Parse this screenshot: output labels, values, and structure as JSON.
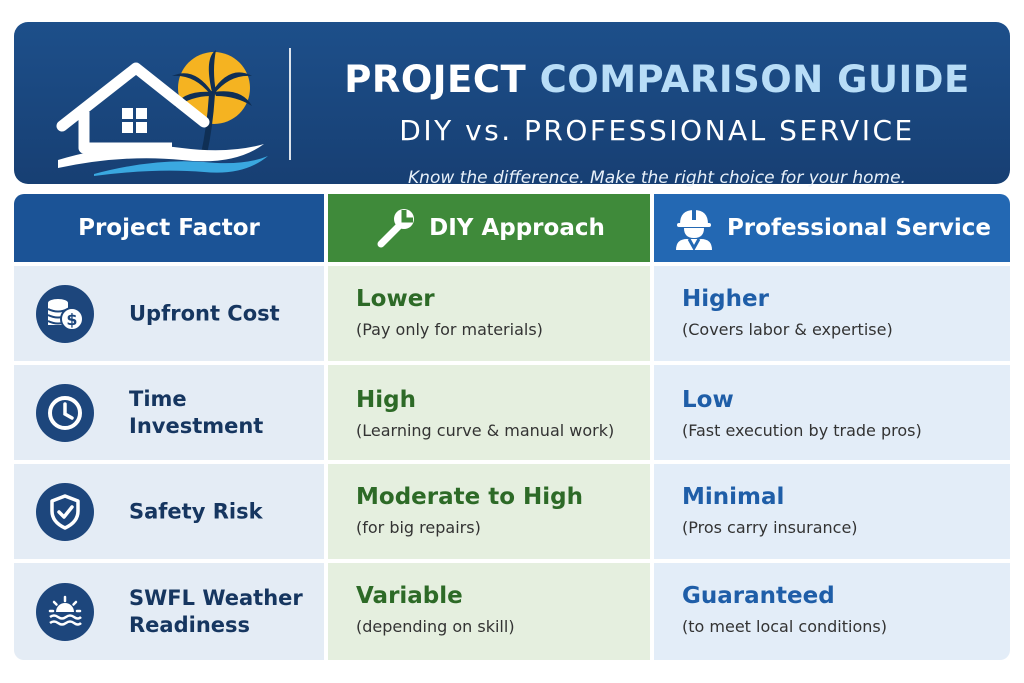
{
  "header": {
    "title_part1": "PROJECT",
    "title_part2": "COMPARISON GUIDE",
    "subtitle": "DIY vs. PROFESSIONAL SERVICE",
    "tagline": "Know the difference. Make the right choice for your home.",
    "logo_icon": "house-palm-wave-icon"
  },
  "columns": {
    "factor": "Project Factor",
    "diy": "DIY Approach",
    "diy_icon": "wrench-icon",
    "pro": "Professional Service",
    "pro_icon": "worker-hardhat-icon"
  },
  "rows": [
    {
      "icon": "coins-dollar-icon",
      "factor_lines": [
        "Upfront Cost"
      ],
      "diy_main": "Lower",
      "diy_sub": "(Pay only for materials)",
      "pro_main": "Higher",
      "pro_sub": "(Covers labor & expertise)"
    },
    {
      "icon": "clock-icon",
      "factor_lines": [
        "Time",
        "Investment"
      ],
      "diy_main": "High",
      "diy_sub": "(Learning curve & manual work)",
      "pro_main": "Low",
      "pro_sub": "(Fast execution by trade pros)"
    },
    {
      "icon": "shield-check-icon",
      "factor_lines": [
        "Safety Risk"
      ],
      "diy_main": "Moderate to High",
      "diy_sub": "(for big repairs)",
      "pro_main": "Minimal",
      "pro_sub": "(Pros carry insurance)"
    },
    {
      "icon": "sun-waves-icon",
      "factor_lines": [
        "SWFL Weather",
        "Readiness"
      ],
      "diy_main": "Variable",
      "diy_sub": "(depending on skill)",
      "pro_main": "Guaranteed",
      "pro_sub": "(to meet local conditions)"
    }
  ],
  "colors": {
    "header_bg": "#1d4f8a",
    "factor_head": "#1b5396",
    "diy_head": "#3f8a3a",
    "pro_head": "#2368b3",
    "diy_text": "#2d6a27",
    "pro_text": "#1f5ea8",
    "title_accent": "#b8ddf7"
  }
}
